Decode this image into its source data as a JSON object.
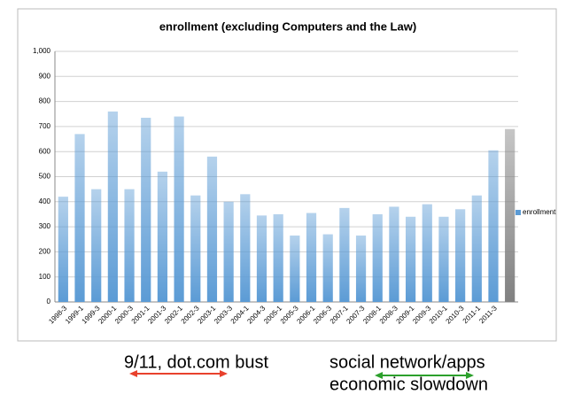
{
  "chart_data": {
    "type": "bar",
    "title": "enrollment (excluding Computers and the Law)",
    "categories": [
      "1998-3",
      "1999-1",
      "1999-3",
      "2000-1",
      "2000-3",
      "2001-1",
      "2001-3",
      "2002-1",
      "2002-3",
      "2003-1",
      "2003-3",
      "2004-1",
      "2004-3",
      "2005-1",
      "2005-3",
      "2006-1",
      "2006-3",
      "2007-1",
      "2007-3",
      "2008-1",
      "2008-3",
      "2009-1",
      "2009-3",
      "2010-1",
      "2010-3",
      "2011-1",
      "2011-3",
      null
    ],
    "series": [
      {
        "name": "enrollment",
        "color": "#5b9bd5",
        "values": [
          420,
          670,
          450,
          760,
          450,
          735,
          520,
          740,
          425,
          580,
          400,
          430,
          345,
          350,
          265,
          355,
          270,
          375,
          265,
          350,
          380,
          340,
          390,
          340,
          370,
          425,
          605,
          690
        ],
        "colors": [
          "#5b9bd5",
          "#5b9bd5",
          "#5b9bd5",
          "#5b9bd5",
          "#5b9bd5",
          "#5b9bd5",
          "#5b9bd5",
          "#5b9bd5",
          "#5b9bd5",
          "#5b9bd5",
          "#5b9bd5",
          "#5b9bd5",
          "#5b9bd5",
          "#5b9bd5",
          "#5b9bd5",
          "#5b9bd5",
          "#5b9bd5",
          "#5b9bd5",
          "#5b9bd5",
          "#5b9bd5",
          "#5b9bd5",
          "#5b9bd5",
          "#5b9bd5",
          "#5b9bd5",
          "#5b9bd5",
          "#5b9bd5",
          "#5b9bd5",
          "#808080"
        ]
      }
    ],
    "ylim": [
      0,
      1000
    ],
    "yticks": [
      0,
      100,
      200,
      300,
      400,
      500,
      600,
      700,
      800,
      900,
      {
        "value": 1000,
        "label": "1,000"
      }
    ],
    "grid": true,
    "legend": "right",
    "annotations": [
      "9/11, dot.com bust",
      "social network/apps",
      "economic slowdown"
    ]
  }
}
